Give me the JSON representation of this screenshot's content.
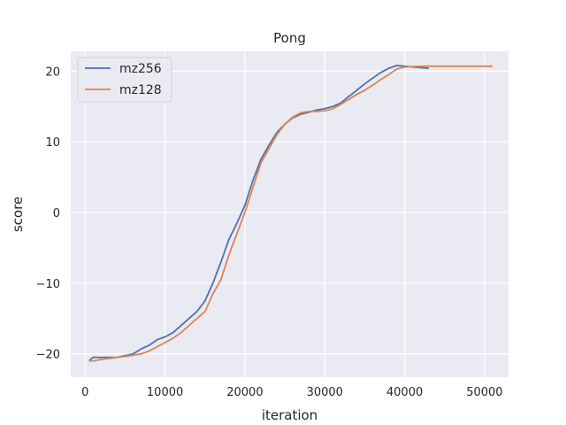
{
  "chart_data": {
    "type": "line",
    "title": "Pong",
    "xlabel": "iteration",
    "ylabel": "score",
    "xlim": [
      -1800,
      53000
    ],
    "ylim": [
      -23.3,
      22.8
    ],
    "xticks": [
      0,
      10000,
      20000,
      30000,
      40000,
      50000
    ],
    "xtick_labels": [
      "0",
      "10000",
      "20000",
      "30000",
      "40000",
      "50000"
    ],
    "yticks": [
      -20,
      -10,
      0,
      10,
      20
    ],
    "ytick_labels": [
      "−20",
      "−10",
      "0",
      "10",
      "20"
    ],
    "grid": true,
    "background": "#eaeaf2",
    "legend": {
      "placement": "top-left"
    },
    "series": [
      {
        "name": "mz256",
        "color": "#4c72b0",
        "x": [
          500,
          1000,
          2000,
          4000,
          6000,
          7000,
          8000,
          9000,
          10000,
          11000,
          12000,
          13000,
          14000,
          15000,
          16000,
          17000,
          18000,
          19000,
          20000,
          21000,
          22000,
          23000,
          24000,
          25000,
          26000,
          27000,
          28000,
          29000,
          30000,
          31000,
          32000,
          33000,
          34000,
          35000,
          36000,
          37000,
          38000,
          39000,
          40000,
          41000,
          42000,
          43000
        ],
        "y": [
          -21.0,
          -20.5,
          -20.5,
          -20.5,
          -20.0,
          -19.3,
          -18.8,
          -18.0,
          -17.6,
          -17.0,
          -16.0,
          -15.0,
          -14.0,
          -12.5,
          -10.0,
          -7.0,
          -3.8,
          -1.5,
          1.0,
          4.5,
          7.5,
          9.5,
          11.3,
          12.5,
          13.4,
          13.9,
          14.2,
          14.5,
          14.7,
          15.0,
          15.5,
          16.4,
          17.3,
          18.2,
          19.0,
          19.8,
          20.4,
          20.8,
          20.7,
          20.6,
          20.5,
          20.4
        ]
      },
      {
        "name": "mz128",
        "color": "#dd8452",
        "x": [
          500,
          1000,
          2000,
          4000,
          6000,
          7000,
          8000,
          9000,
          10000,
          11000,
          12000,
          13000,
          14000,
          15000,
          16000,
          17000,
          18000,
          19000,
          20000,
          21000,
          22000,
          23000,
          24000,
          25000,
          26000,
          27000,
          28000,
          29000,
          30000,
          31000,
          32000,
          33000,
          34000,
          35000,
          36000,
          37000,
          38000,
          39000,
          40000,
          42000,
          45000,
          48000,
          51000
        ],
        "y": [
          -21.0,
          -21.0,
          -20.8,
          -20.5,
          -20.2,
          -20.0,
          -19.6,
          -19.0,
          -18.4,
          -17.8,
          -17.0,
          -16.0,
          -15.0,
          -14.0,
          -11.5,
          -9.5,
          -6.0,
          -3.0,
          0.0,
          3.5,
          7.0,
          9.0,
          11.0,
          12.5,
          13.5,
          14.1,
          14.3,
          14.3,
          14.4,
          14.7,
          15.3,
          16.0,
          16.7,
          17.3,
          18.0,
          18.8,
          19.5,
          20.3,
          20.6,
          20.7,
          20.7,
          20.7,
          20.7
        ]
      }
    ]
  }
}
